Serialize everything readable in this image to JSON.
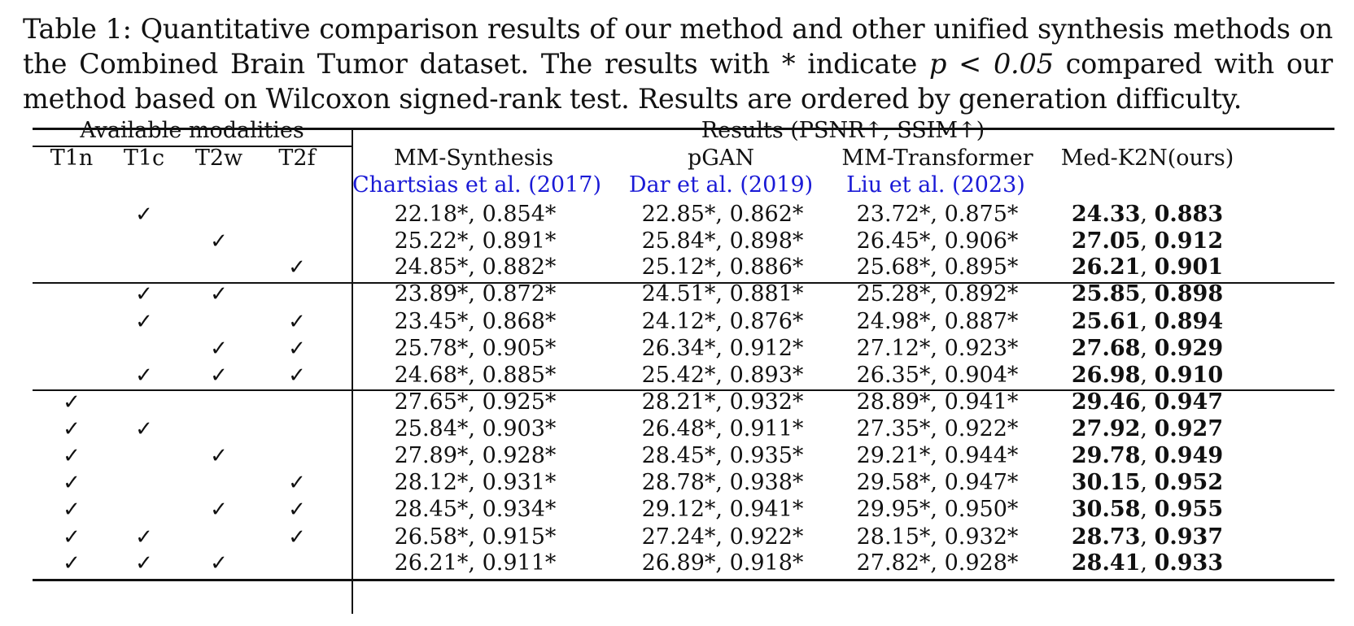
{
  "caption": {
    "label": "Table 1:",
    "text_before_p": "Quantitative comparison results of our method and other unified synthesis methods on the Combined Brain Tumor dataset. The results with * indicate",
    "p_expr": "p < 0.05",
    "text_after_p": "compared with our method based on Wilcoxon signed-rank test. Results are ordered by generation difficulty."
  },
  "header": {
    "available_label": "Available modalities",
    "results_label": "Results (PSNR↑, SSIM↑)",
    "modalities": [
      "T1n",
      "T1c",
      "T2w",
      "T2f"
    ],
    "methods": [
      {
        "name": "MM-Synthesis",
        "ref_author": "Chartsias et al.",
        "ref_year": "2017"
      },
      {
        "name": "pGAN",
        "ref_author": "Dar et al.",
        "ref_year": "2019"
      },
      {
        "name": "MM-Transformer",
        "ref_author": "Liu et al.",
        "ref_year": "2023"
      },
      {
        "name": "Med-K2N(ours)",
        "ref_author": "",
        "ref_year": ""
      }
    ]
  },
  "check_symbol": "✓",
  "rows": [
    {
      "checks": [
        false,
        true,
        false,
        false
      ],
      "values": [
        "22.18*, 0.854*",
        "22.85*, 0.862*",
        "23.72*, 0.875*"
      ],
      "ours_psnr": "24.33",
      "ours_ssim": "0.883"
    },
    {
      "checks": [
        false,
        false,
        true,
        false
      ],
      "values": [
        "25.22*, 0.891*",
        "25.84*, 0.898*",
        "26.45*, 0.906*"
      ],
      "ours_psnr": "27.05",
      "ours_ssim": "0.912"
    },
    {
      "checks": [
        false,
        false,
        false,
        true
      ],
      "values": [
        "24.85*, 0.882*",
        "25.12*, 0.886*",
        "25.68*, 0.895*"
      ],
      "ours_psnr": "26.21",
      "ours_ssim": "0.901"
    },
    {
      "checks": [
        false,
        true,
        true,
        false
      ],
      "values": [
        "23.89*, 0.872*",
        "24.51*, 0.881*",
        "25.28*, 0.892*"
      ],
      "ours_psnr": "25.85",
      "ours_ssim": "0.898"
    },
    {
      "checks": [
        false,
        true,
        false,
        true
      ],
      "values": [
        "23.45*, 0.868*",
        "24.12*, 0.876*",
        "24.98*, 0.887*"
      ],
      "ours_psnr": "25.61",
      "ours_ssim": "0.894"
    },
    {
      "checks": [
        false,
        false,
        true,
        true
      ],
      "values": [
        "25.78*, 0.905*",
        "26.34*, 0.912*",
        "27.12*, 0.923*"
      ],
      "ours_psnr": "27.68",
      "ours_ssim": "0.929"
    },
    {
      "checks": [
        false,
        true,
        true,
        true
      ],
      "values": [
        "24.68*, 0.885*",
        "25.42*, 0.893*",
        "26.35*, 0.904*"
      ],
      "ours_psnr": "26.98",
      "ours_ssim": "0.910"
    },
    {
      "checks": [
        true,
        false,
        false,
        false
      ],
      "values": [
        "27.65*, 0.925*",
        "28.21*, 0.932*",
        "28.89*, 0.941*"
      ],
      "ours_psnr": "29.46",
      "ours_ssim": "0.947"
    },
    {
      "checks": [
        true,
        true,
        false,
        false
      ],
      "values": [
        "25.84*, 0.903*",
        "26.48*, 0.911*",
        "27.35*, 0.922*"
      ],
      "ours_psnr": "27.92",
      "ours_ssim": "0.927"
    },
    {
      "checks": [
        true,
        false,
        true,
        false
      ],
      "values": [
        "27.89*, 0.928*",
        "28.45*, 0.935*",
        "29.21*, 0.944*"
      ],
      "ours_psnr": "29.78",
      "ours_ssim": "0.949"
    },
    {
      "checks": [
        true,
        false,
        false,
        true
      ],
      "values": [
        "28.12*, 0.931*",
        "28.78*, 0.938*",
        "29.58*, 0.947*"
      ],
      "ours_psnr": "30.15",
      "ours_ssim": "0.952"
    },
    {
      "checks": [
        true,
        false,
        true,
        true
      ],
      "values": [
        "28.45*, 0.934*",
        "29.12*, 0.941*",
        "29.95*, 0.950*"
      ],
      "ours_psnr": "30.58",
      "ours_ssim": "0.955"
    },
    {
      "checks": [
        true,
        true,
        false,
        true
      ],
      "values": [
        "26.58*, 0.915*",
        "27.24*, 0.922*",
        "28.15*, 0.932*"
      ],
      "ours_psnr": "28.73",
      "ours_ssim": "0.937"
    },
    {
      "checks": [
        true,
        true,
        true,
        false
      ],
      "values": [
        "26.21*, 0.911*",
        "26.89*, 0.918*",
        "27.82*, 0.928*"
      ],
      "ours_psnr": "28.41",
      "ours_ssim": "0.933"
    }
  ]
}
